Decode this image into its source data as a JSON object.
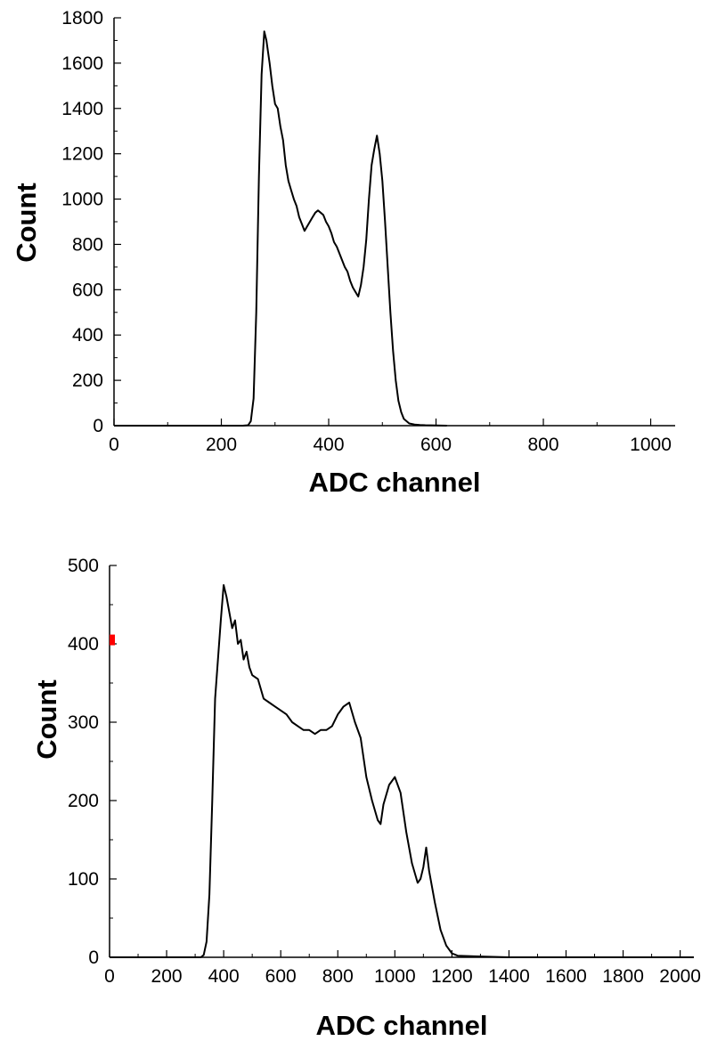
{
  "chart_data": [
    {
      "type": "line",
      "xlabel": "ADC channel",
      "ylabel": "Count",
      "xlim": [
        0,
        1024
      ],
      "ylim": [
        0,
        1800
      ],
      "xticks": [
        0,
        200,
        400,
        600,
        800,
        1000
      ],
      "xtick_labels": [
        "0",
        "200",
        "400",
        "600",
        "800",
        "1000"
      ],
      "yticks": [
        0,
        200,
        400,
        600,
        800,
        1000,
        1200,
        1400,
        1600,
        1800
      ],
      "ytick_labels": [
        "0",
        "200",
        "400",
        "600",
        "800",
        "1000",
        "1200",
        "1400",
        "1600",
        "1800"
      ],
      "grid": false,
      "series": [
        {
          "color": "#000000",
          "points": [
            [
              0,
              0
            ],
            [
              240,
              0
            ],
            [
              250,
              2
            ],
            [
              255,
              20
            ],
            [
              260,
              120
            ],
            [
              265,
              500
            ],
            [
              270,
              1100
            ],
            [
              275,
              1550
            ],
            [
              280,
              1740
            ],
            [
              284,
              1700
            ],
            [
              290,
              1600
            ],
            [
              295,
              1500
            ],
            [
              300,
              1420
            ],
            [
              305,
              1400
            ],
            [
              310,
              1320
            ],
            [
              315,
              1260
            ],
            [
              320,
              1150
            ],
            [
              325,
              1080
            ],
            [
              330,
              1040
            ],
            [
              335,
              1000
            ],
            [
              340,
              970
            ],
            [
              345,
              920
            ],
            [
              350,
              890
            ],
            [
              355,
              860
            ],
            [
              360,
              880
            ],
            [
              365,
              900
            ],
            [
              370,
              920
            ],
            [
              375,
              940
            ],
            [
              380,
              950
            ],
            [
              385,
              940
            ],
            [
              390,
              930
            ],
            [
              395,
              900
            ],
            [
              400,
              880
            ],
            [
              405,
              850
            ],
            [
              410,
              810
            ],
            [
              415,
              790
            ],
            [
              420,
              760
            ],
            [
              425,
              730
            ],
            [
              430,
              700
            ],
            [
              435,
              680
            ],
            [
              440,
              640
            ],
            [
              445,
              610
            ],
            [
              450,
              590
            ],
            [
              455,
              570
            ],
            [
              460,
              620
            ],
            [
              465,
              700
            ],
            [
              470,
              820
            ],
            [
              475,
              1000
            ],
            [
              480,
              1150
            ],
            [
              485,
              1220
            ],
            [
              490,
              1280
            ],
            [
              495,
              1200
            ],
            [
              500,
              1080
            ],
            [
              505,
              900
            ],
            [
              510,
              700
            ],
            [
              515,
              500
            ],
            [
              520,
              330
            ],
            [
              525,
              200
            ],
            [
              530,
              110
            ],
            [
              535,
              60
            ],
            [
              540,
              30
            ],
            [
              550,
              10
            ],
            [
              560,
              5
            ],
            [
              570,
              3
            ],
            [
              580,
              2
            ],
            [
              600,
              1
            ],
            [
              620,
              0
            ]
          ]
        }
      ]
    },
    {
      "type": "line",
      "xlabel": "ADC channel",
      "ylabel": "Count",
      "xlim": [
        0,
        2048
      ],
      "ylim": [
        0,
        500
      ],
      "xticks": [
        0,
        200,
        400,
        600,
        800,
        1000,
        1200,
        1400,
        1600,
        1800,
        2000
      ],
      "xtick_labels": [
        "0",
        "200",
        "400",
        "600",
        "800",
        "1000",
        "1200",
        "1400",
        "1600",
        "1800",
        "2000"
      ],
      "yticks": [
        0,
        100,
        200,
        300,
        400,
        500
      ],
      "ytick_labels": [
        "0",
        "100",
        "200",
        "300",
        "400",
        "500"
      ],
      "grid": false,
      "marker": {
        "x": 0,
        "y": 405,
        "color": "#ff0000"
      },
      "series": [
        {
          "color": "#000000",
          "points": [
            [
              0,
              0
            ],
            [
              320,
              0
            ],
            [
              330,
              3
            ],
            [
              340,
              20
            ],
            [
              350,
              80
            ],
            [
              360,
              200
            ],
            [
              370,
              330
            ],
            [
              380,
              380
            ],
            [
              390,
              430
            ],
            [
              400,
              475
            ],
            [
              410,
              460
            ],
            [
              420,
              440
            ],
            [
              430,
              420
            ],
            [
              440,
              430
            ],
            [
              450,
              400
            ],
            [
              460,
              405
            ],
            [
              470,
              380
            ],
            [
              480,
              390
            ],
            [
              490,
              370
            ],
            [
              500,
              360
            ],
            [
              520,
              355
            ],
            [
              540,
              330
            ],
            [
              560,
              325
            ],
            [
              580,
              320
            ],
            [
              600,
              315
            ],
            [
              620,
              310
            ],
            [
              640,
              300
            ],
            [
              660,
              295
            ],
            [
              680,
              290
            ],
            [
              700,
              290
            ],
            [
              720,
              285
            ],
            [
              740,
              290
            ],
            [
              760,
              290
            ],
            [
              780,
              295
            ],
            [
              800,
              310
            ],
            [
              820,
              320
            ],
            [
              840,
              325
            ],
            [
              860,
              300
            ],
            [
              880,
              280
            ],
            [
              900,
              230
            ],
            [
              920,
              200
            ],
            [
              940,
              175
            ],
            [
              950,
              170
            ],
            [
              960,
              195
            ],
            [
              980,
              220
            ],
            [
              1000,
              230
            ],
            [
              1020,
              210
            ],
            [
              1040,
              160
            ],
            [
              1060,
              120
            ],
            [
              1080,
              95
            ],
            [
              1090,
              100
            ],
            [
              1100,
              115
            ],
            [
              1110,
              140
            ],
            [
              1120,
              110
            ],
            [
              1140,
              70
            ],
            [
              1160,
              35
            ],
            [
              1180,
              15
            ],
            [
              1200,
              5
            ],
            [
              1220,
              2
            ],
            [
              1300,
              1
            ],
            [
              1400,
              0
            ],
            [
              2048,
              0
            ]
          ]
        }
      ]
    }
  ]
}
